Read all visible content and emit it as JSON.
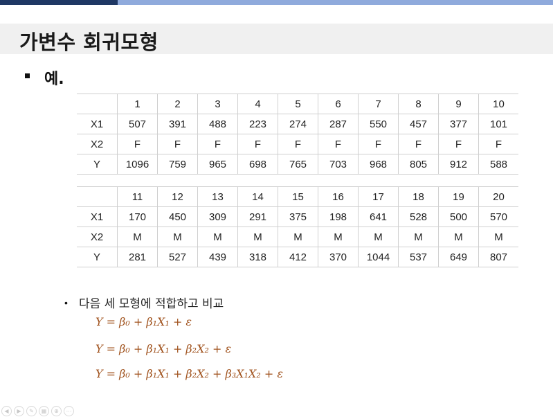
{
  "slide": {
    "title": "가변수 회귀모형",
    "example_label": "예.",
    "bullet_text": "다음 세 모형에 적합하고 비교"
  },
  "table1": {
    "header": [
      "",
      "1",
      "2",
      "3",
      "4",
      "5",
      "6",
      "7",
      "8",
      "9",
      "10"
    ],
    "rows": [
      [
        "X1",
        "507",
        "391",
        "488",
        "223",
        "274",
        "287",
        "550",
        "457",
        "377",
        "101"
      ],
      [
        "X2",
        "F",
        "F",
        "F",
        "F",
        "F",
        "F",
        "F",
        "F",
        "F",
        "F"
      ],
      [
        "Y",
        "1096",
        "759",
        "965",
        "698",
        "765",
        "703",
        "968",
        "805",
        "912",
        "588"
      ]
    ]
  },
  "table2": {
    "header": [
      "",
      "11",
      "12",
      "13",
      "14",
      "15",
      "16",
      "17",
      "18",
      "19",
      "20"
    ],
    "rows": [
      [
        "X1",
        "170",
        "450",
        "309",
        "291",
        "375",
        "198",
        "641",
        "528",
        "500",
        "570"
      ],
      [
        "X2",
        "M",
        "M",
        "M",
        "M",
        "M",
        "M",
        "M",
        "M",
        "M",
        "M"
      ],
      [
        "Y",
        "281",
        "527",
        "439",
        "318",
        "412",
        "370",
        "1044",
        "537",
        "649",
        "807"
      ]
    ]
  },
  "equations": [
    "Y = β₀ + β₁X₁ + ε",
    "Y = β₀ + β₁X₁ + β₂X₂ + ε",
    "Y = β₀ + β₁X₁ + β₂X₂ + β₃X₁X₂ + ε"
  ],
  "nav_icons": [
    "prev-icon",
    "next-icon",
    "pen-icon",
    "slides-icon",
    "zoom-icon",
    "more-icon"
  ],
  "colors": {
    "topbar_dark": "#1f3864",
    "topbar_light": "#8faadc",
    "title_band": "#f0f0f0",
    "equation": "#a0521d"
  }
}
